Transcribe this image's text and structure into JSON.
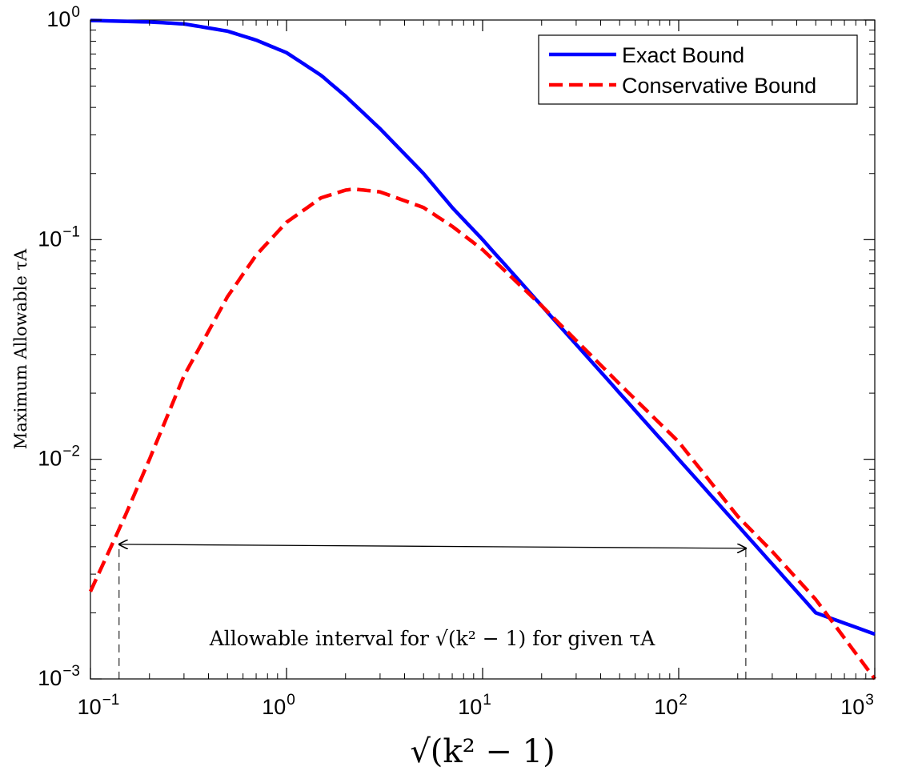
{
  "chart_data": {
    "type": "line",
    "title": "",
    "xlabel": "√(k² − 1)",
    "ylabel": "Maximum Allowable τA",
    "xscale": "log",
    "yscale": "log",
    "xlim": [
      0.1,
      1000
    ],
    "ylim": [
      0.001,
      1
    ],
    "x_ticks": [
      {
        "value": 0.1,
        "base": "10",
        "exp": "−1"
      },
      {
        "value": 1,
        "base": "10",
        "exp": "0"
      },
      {
        "value": 10,
        "base": "10",
        "exp": "1"
      },
      {
        "value": 100,
        "base": "10",
        "exp": "2"
      },
      {
        "value": 1000,
        "base": "10",
        "exp": "3"
      }
    ],
    "y_ticks": [
      {
        "value": 1,
        "base": "10",
        "exp": "0"
      },
      {
        "value": 0.1,
        "base": "10",
        "exp": "−1"
      },
      {
        "value": 0.01,
        "base": "10",
        "exp": "−2"
      },
      {
        "value": 0.001,
        "base": "10",
        "exp": "−3"
      }
    ],
    "grid": false,
    "legend": {
      "position": "top-right"
    },
    "series": [
      {
        "name": "Exact Bound",
        "color": "#0000ff",
        "style": "solid",
        "x": [
          0.1,
          0.2,
          0.3,
          0.5,
          0.7,
          1,
          1.5,
          2,
          3,
          5,
          7,
          10,
          20,
          50,
          100,
          200,
          500,
          1000
        ],
        "y": [
          0.995,
          0.98,
          0.96,
          0.89,
          0.81,
          0.71,
          0.56,
          0.45,
          0.32,
          0.2,
          0.14,
          0.1,
          0.05,
          0.02,
          0.01,
          0.005,
          0.002,
          0.0016
        ]
      },
      {
        "name": "Conservative Bound",
        "color": "#ff0000",
        "style": "dashed",
        "x": [
          0.1,
          0.15,
          0.2,
          0.3,
          0.5,
          0.7,
          1,
          1.5,
          2,
          2.2,
          3,
          5,
          7,
          10,
          20,
          50,
          100,
          200,
          300,
          500,
          1000
        ],
        "y": [
          0.0025,
          0.0055,
          0.01,
          0.024,
          0.055,
          0.085,
          0.12,
          0.155,
          0.168,
          0.17,
          0.165,
          0.14,
          0.115,
          0.09,
          0.05,
          0.022,
          0.012,
          0.0055,
          0.0038,
          0.0023,
          0.001
        ]
      }
    ],
    "annotations": [
      {
        "type": "double-arrow",
        "text": "Allowable interval for √(k² − 1) for given τA",
        "x_start": 0.14,
        "x_end": 220,
        "y": 0.0041
      }
    ]
  }
}
